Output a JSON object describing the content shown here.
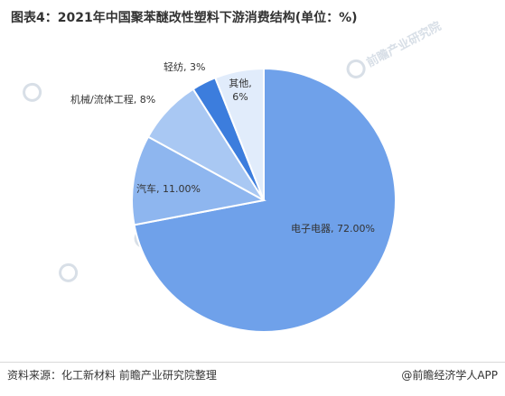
{
  "title": "图表4：2021年中国聚苯醚改性塑料下游消费结构(单位：%)",
  "source": "资料来源：化工新材料 前瞻产业研究院整理",
  "brand": "@前瞻经济学人APP",
  "watermark": "前瞻产业研究院",
  "chart_data": {
    "type": "pie",
    "title": "图表4：2021年中国聚苯醚改性塑料下游消费结构(单位：%)",
    "unit": "%",
    "slices": [
      {
        "name": "电子电器",
        "value": 72,
        "label": "电子电器, 72.00%",
        "color": "#6fa1ea"
      },
      {
        "name": "汽车",
        "value": 11,
        "label": "汽车, 11.00%",
        "color": "#8eb6ef"
      },
      {
        "name": "机械/流体工程",
        "value": 8,
        "label": "机械/流体工程, 8%",
        "color": "#a9c8f3"
      },
      {
        "name": "轻纺",
        "value": 3,
        "label": "轻纺, 3%",
        "color": "#3c7ddd"
      },
      {
        "name": "其他",
        "value": 6,
        "label": "其他, 6%",
        "color": "#e1ecfb"
      }
    ]
  }
}
